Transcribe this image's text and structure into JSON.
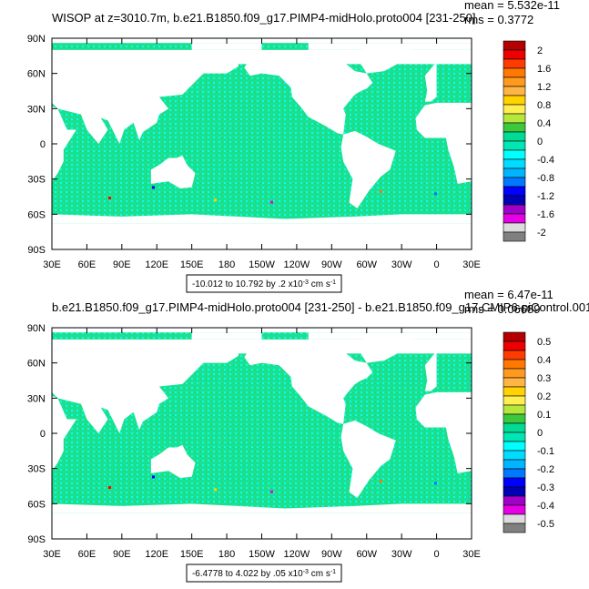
{
  "panels": [
    {
      "title": "WISOP at z=3010.7m, b.e21.B1850.f09_g17.PIMP4-midHolo.proto004 [231-250]",
      "mean": "mean = 5.532e-11",
      "rms": "rms = 0.3772",
      "xlim": [
        30,
        390
      ],
      "ylim": [
        -90,
        90
      ],
      "lat_ticks": [
        {
          "value": 90,
          "label": "90N"
        },
        {
          "value": 60,
          "label": "60N"
        },
        {
          "value": 30,
          "label": "30N"
        },
        0,
        {
          "value": -30,
          "label": "30S"
        },
        {
          "value": -60,
          "label": "60S"
        },
        {
          "value": -90,
          "label": "90S"
        }
      ],
      "lon_ticks": [
        {
          "value": 30,
          "label": "30E"
        },
        {
          "value": 60,
          "label": "60E"
        },
        {
          "value": 90,
          "label": "90E"
        },
        {
          "value": 120,
          "label": "120E"
        },
        {
          "value": 150,
          "label": "150E"
        },
        180,
        {
          "value": 210,
          "label": "150W"
        },
        {
          "value": 240,
          "label": "120W"
        },
        {
          "value": 270,
          "label": "90W"
        },
        {
          "value": 300,
          "label": "60W"
        },
        {
          "value": 330,
          "label": "30W"
        },
        {
          "value": 360,
          "label": "0"
        },
        {
          "value": 390,
          "label": "30E"
        }
      ],
      "colorbar": {
        "labels": [
          2,
          1.6,
          1.2,
          0.8,
          0.4,
          0,
          -0.4,
          -0.8,
          -1.2,
          -1.6,
          -2
        ],
        "colors": [
          "#b40000",
          "#ee0000",
          "#ff3c00",
          "#ff7800",
          "#ff9a1e",
          "#ffb446",
          "#ffd200",
          "#ffee50",
          "#b4e63c",
          "#3cc83c",
          "#00dc96",
          "#00e6b4",
          "#00ffff",
          "#00dcff",
          "#00b4ff",
          "#0078ff",
          "#0000ff",
          "#0000b4",
          "#a000c8",
          "#e600e6",
          "#dcdcdc",
          "#808080"
        ]
      },
      "range_note": [
        "-10.012 to 10.792 by .2 x10",
        "-3",
        " cm s",
        "-1"
      ]
    },
    {
      "title": "b.e21.B1850.f09_g17.PIMP4-midHolo.proto004 [231-250] - b.e21.B1850.f09_g17.CMIP6-piControl.001 [",
      "mean": "mean = 6.47e-11",
      "rms": "rms = 0.06689",
      "xlim": [
        30,
        390
      ],
      "ylim": [
        -90,
        90
      ],
      "lat_ticks": [
        {
          "value": 90,
          "label": "90N"
        },
        {
          "value": 60,
          "label": "60N"
        },
        {
          "value": 30,
          "label": "30N"
        },
        0,
        {
          "value": -30,
          "label": "30S"
        },
        {
          "value": -60,
          "label": "60S"
        },
        {
          "value": -90,
          "label": "90S"
        }
      ],
      "lon_ticks": [
        {
          "value": 30,
          "label": "30E"
        },
        {
          "value": 60,
          "label": "60E"
        },
        {
          "value": 90,
          "label": "90E"
        },
        {
          "value": 120,
          "label": "120E"
        },
        {
          "value": 150,
          "label": "150E"
        },
        180,
        {
          "value": 210,
          "label": "150W"
        },
        {
          "value": 240,
          "label": "120W"
        },
        {
          "value": 270,
          "label": "90W"
        },
        {
          "value": 300,
          "label": "60W"
        },
        {
          "value": 330,
          "label": "30W"
        },
        {
          "value": 360,
          "label": "0"
        },
        {
          "value": 390,
          "label": "30E"
        }
      ],
      "colorbar": {
        "labels": [
          0.5,
          0.4,
          0.3,
          0.2,
          0.1,
          0,
          -0.1,
          -0.2,
          -0.3,
          -0.4,
          -0.5
        ],
        "colors": [
          "#b40000",
          "#ee0000",
          "#ff3c00",
          "#ff7800",
          "#ff9a1e",
          "#ffb446",
          "#ffd200",
          "#ffee50",
          "#b4e63c",
          "#3cc83c",
          "#00dc96",
          "#00e6b4",
          "#00ffff",
          "#00dcff",
          "#00b4ff",
          "#0078ff",
          "#0000ff",
          "#0000b4",
          "#a000c8",
          "#e600e6",
          "#dcdcdc",
          "#808080"
        ]
      },
      "range_note": [
        "-6.4778 to 4.022 by .05 x10",
        "-3",
        " cm s",
        "-1"
      ]
    }
  ]
}
